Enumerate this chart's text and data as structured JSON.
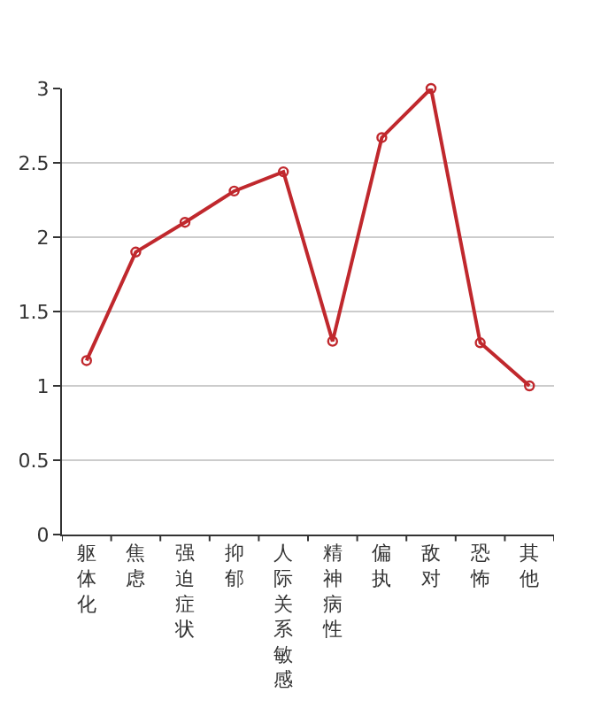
{
  "chart_data": {
    "type": "line",
    "categories": [
      "躯体化",
      "焦虑",
      "强迫症状",
      "抑郁",
      "人际关系敏感",
      "精神病性",
      "偏执",
      "敌对",
      "恐怖",
      "其他"
    ],
    "series": [
      {
        "color": "#c0282d",
        "values": [
          1.17,
          1.9,
          2.1,
          2.31,
          2.44,
          1.3,
          2.67,
          3.0,
          1.29,
          1.0
        ]
      }
    ],
    "ylim": [
      0,
      3
    ],
    "yticks": [
      0,
      0.5,
      1,
      1.5,
      2,
      2.5,
      3
    ],
    "grid": "y",
    "marker": "circle",
    "line_style": "solid"
  }
}
